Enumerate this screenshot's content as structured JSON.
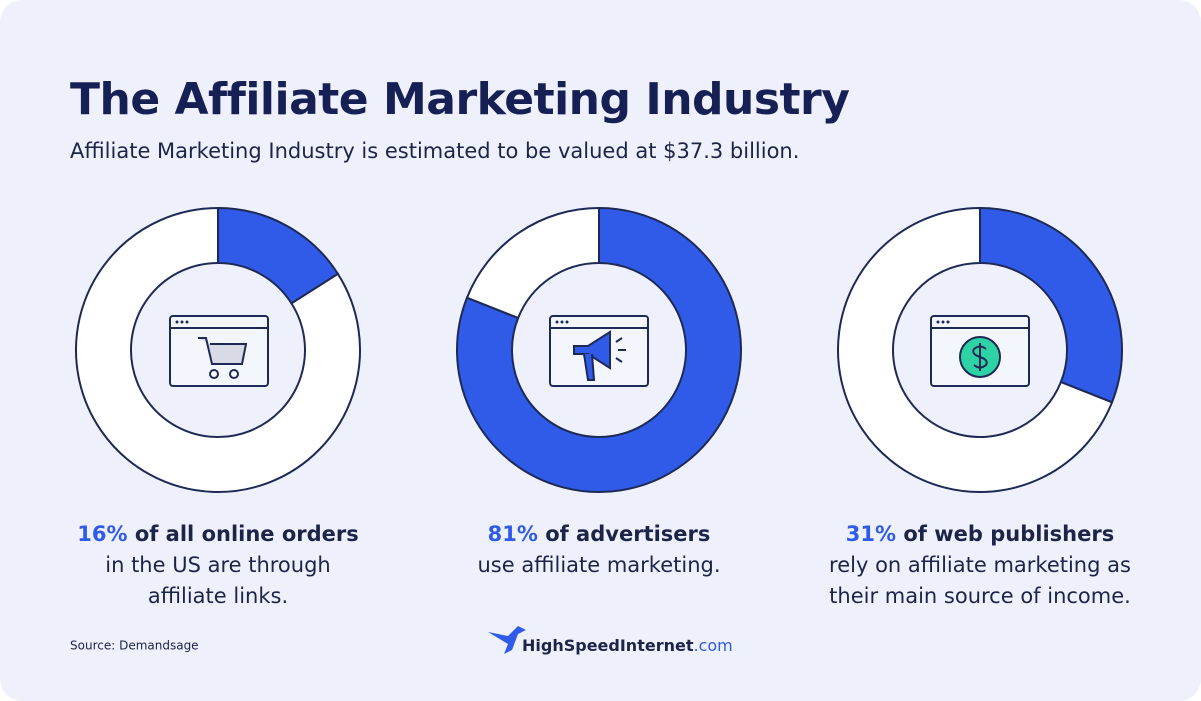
{
  "header": {
    "title": "The Affiliate Marketing Industry",
    "subtitle": "Affiliate Marketing Industry is estimated to be valued at $37.3 billion."
  },
  "chart_data": [
    {
      "type": "donut",
      "values": [
        16,
        84
      ],
      "value_labels": [
        "16%",
        null
      ],
      "colors": [
        "#2f5be8",
        "#ffffff"
      ],
      "caption_bold": "of all online orders",
      "caption_lines": [
        "in the US are through",
        "affiliate links."
      ]
    },
    {
      "type": "donut",
      "values": [
        81,
        19
      ],
      "value_labels": [
        "81%",
        null
      ],
      "colors": [
        "#2f5be8",
        "#ffffff"
      ],
      "caption_bold": "of advertisers",
      "caption_lines": [
        "use affiliate marketing."
      ]
    },
    {
      "type": "donut",
      "values": [
        31,
        69
      ],
      "value_labels": [
        "31%",
        null
      ],
      "colors": [
        "#2f5be8",
        "#ffffff"
      ],
      "caption_bold": "of web publishers",
      "caption_lines": [
        "rely on affiliate marketing as",
        "their main source of income."
      ]
    }
  ],
  "footer": {
    "source": "Source: Demandsage",
    "logo_name": "HighSpeedInternet",
    "logo_domain": ".com"
  }
}
